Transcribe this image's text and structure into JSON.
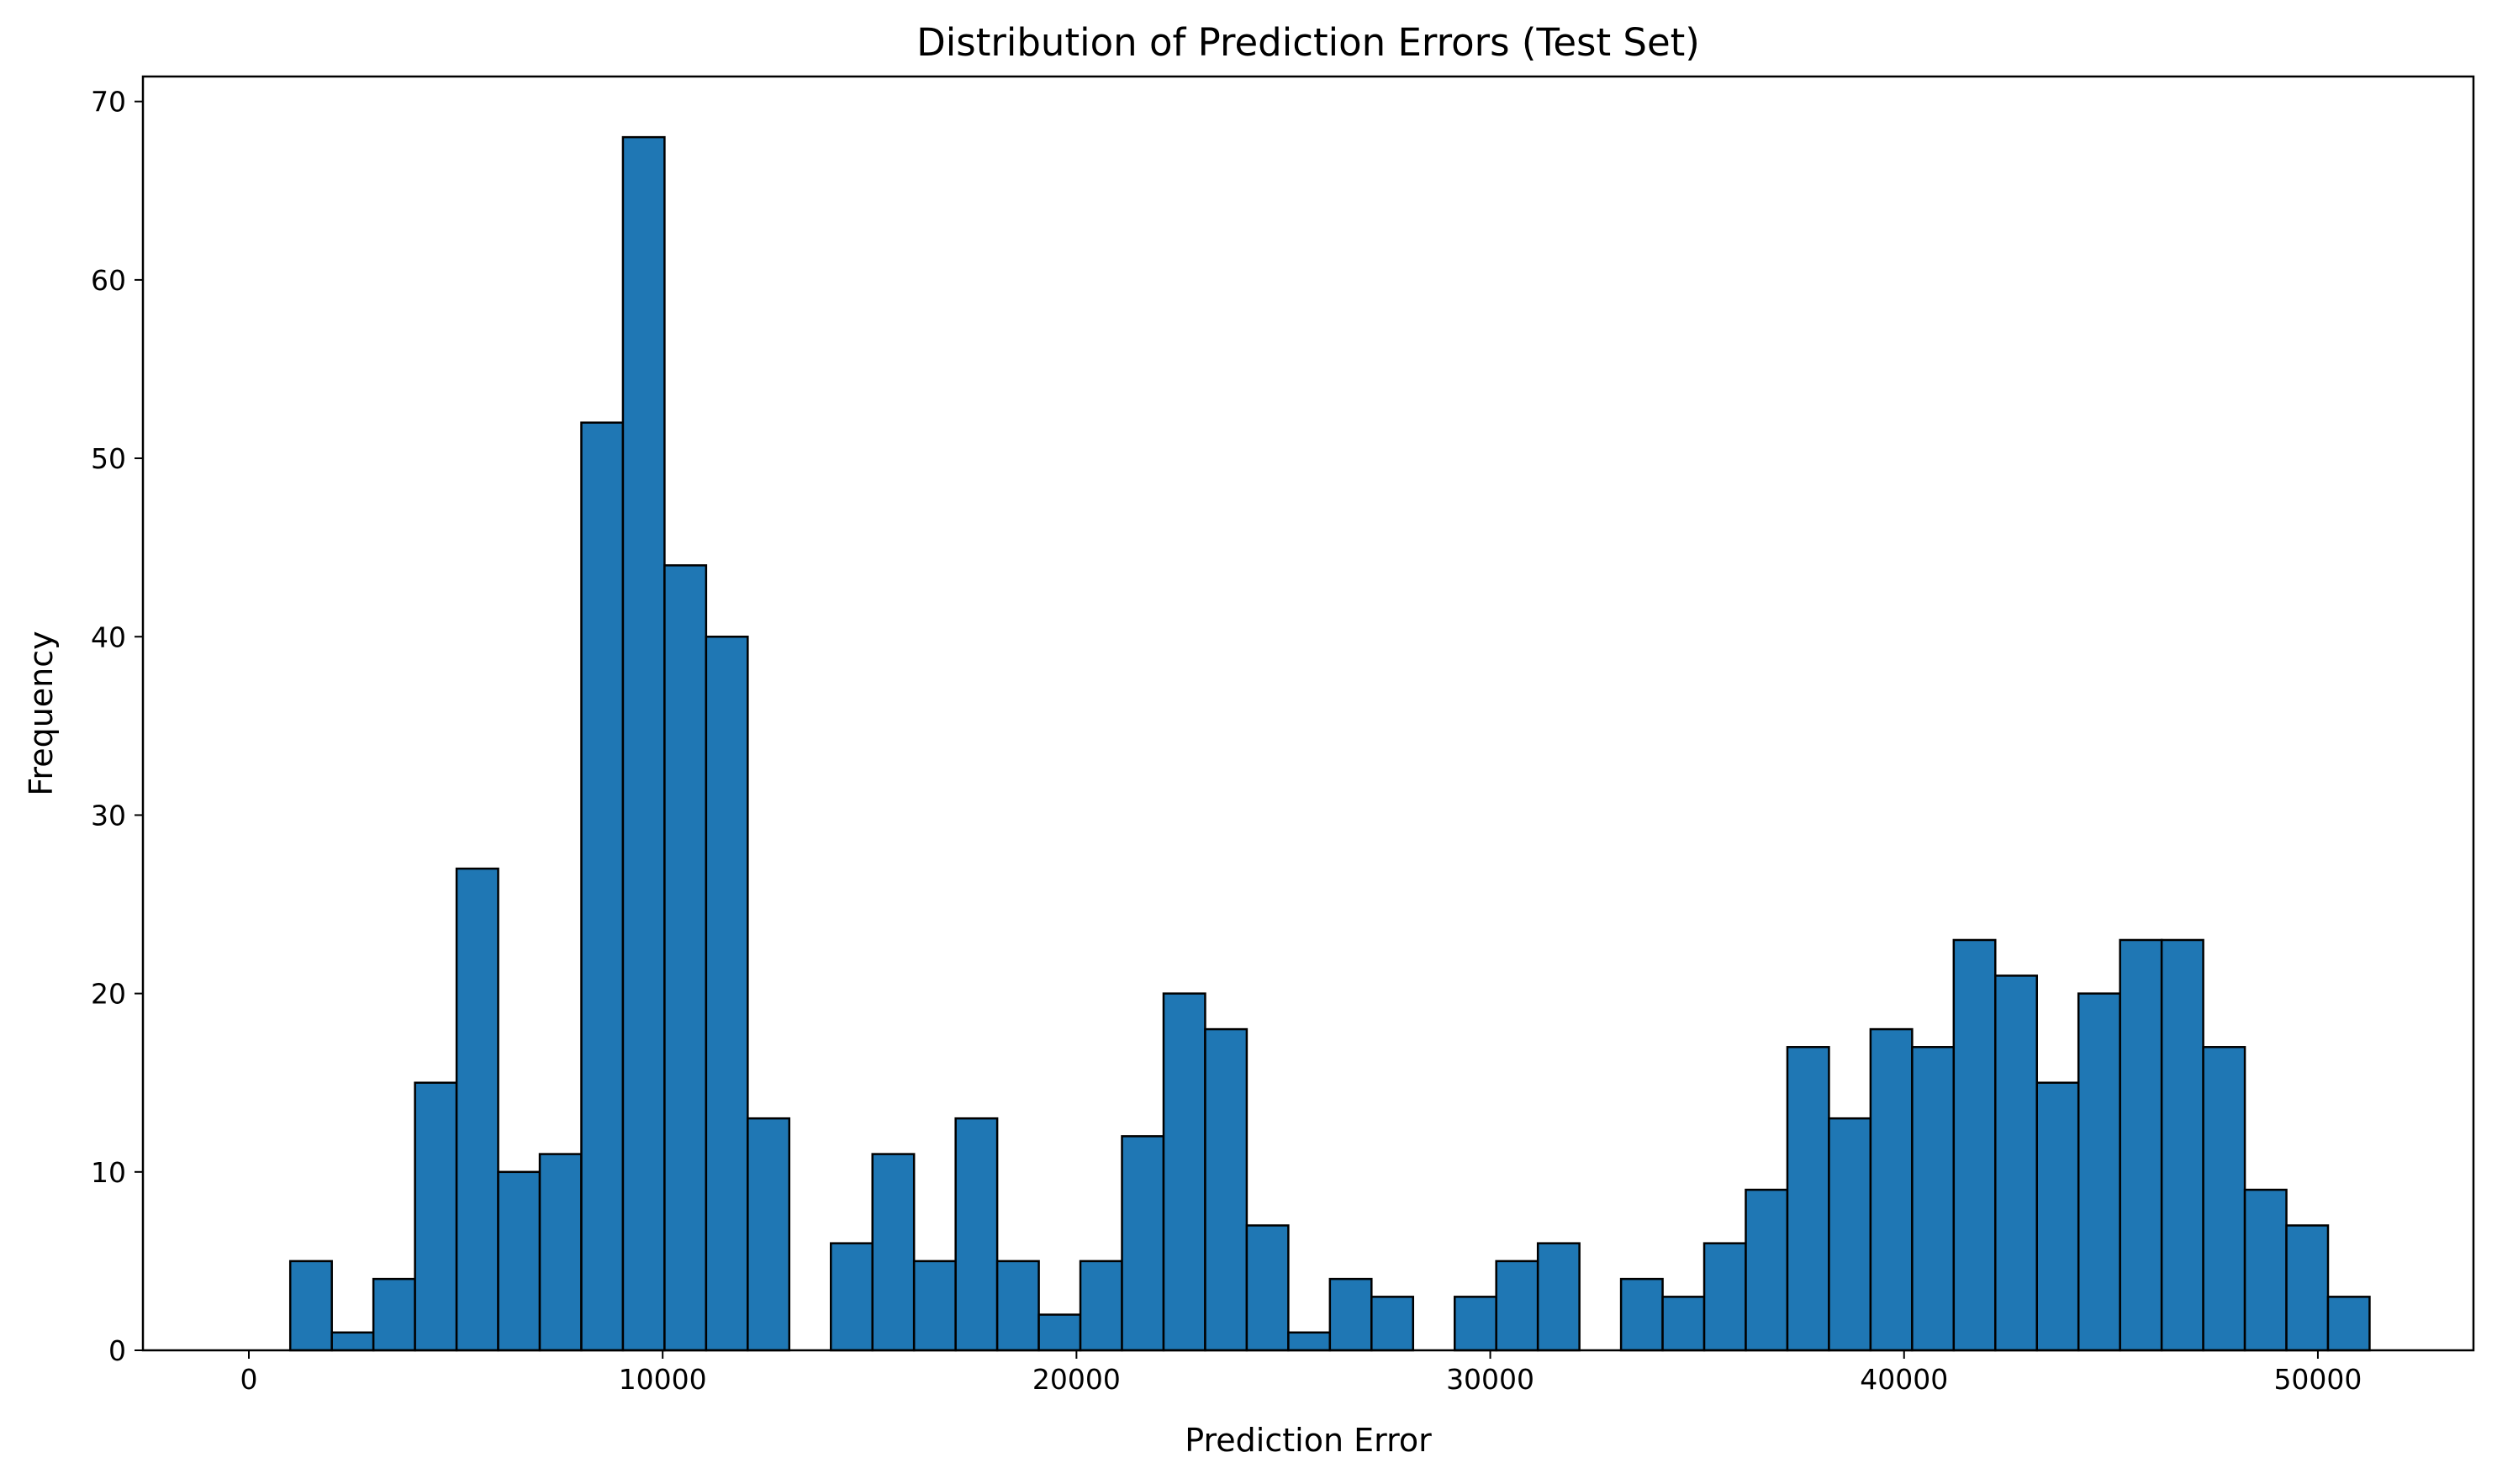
{
  "chart_data": {
    "type": "bar",
    "title": "Distribution of Prediction Errors (Test Set)",
    "xlabel": "Prediction Error",
    "ylabel": "Frequency",
    "bin_width": 1005,
    "bin_starts": [
      1000,
      2005,
      3010,
      4015,
      5020,
      6025,
      7030,
      8035,
      9040,
      10045,
      11050,
      12055,
      13060,
      14065,
      15070,
      16075,
      17080,
      18085,
      19090,
      20095,
      21100,
      22105,
      23110,
      24115,
      25120,
      26125,
      27130,
      28135,
      29140,
      30145,
      31150,
      32155,
      33160,
      34165,
      35170,
      36175,
      37180,
      38185,
      39190,
      40195,
      41200,
      42205,
      43210,
      44215,
      45220,
      46225,
      47230,
      48235,
      49240,
      50245
    ],
    "values": [
      5,
      1,
      4,
      15,
      27,
      10,
      11,
      52,
      68,
      44,
      40,
      13,
      0,
      6,
      11,
      5,
      13,
      5,
      2,
      5,
      12,
      20,
      18,
      7,
      1,
      4,
      3,
      0,
      3,
      5,
      6,
      0,
      4,
      3,
      6,
      9,
      17,
      13,
      18,
      17,
      23,
      21,
      15,
      20,
      23,
      23,
      17,
      9,
      7,
      3
    ],
    "xlim": [
      -2560,
      53760
    ],
    "ylim": [
      0,
      71.4
    ],
    "xticks": [
      0,
      10000,
      20000,
      30000,
      40000,
      50000
    ],
    "yticks": [
      0,
      10,
      20,
      30,
      40,
      50,
      60,
      70
    ],
    "grid": false,
    "bar_color": "#1f77b4",
    "edge_color": "#000000"
  }
}
